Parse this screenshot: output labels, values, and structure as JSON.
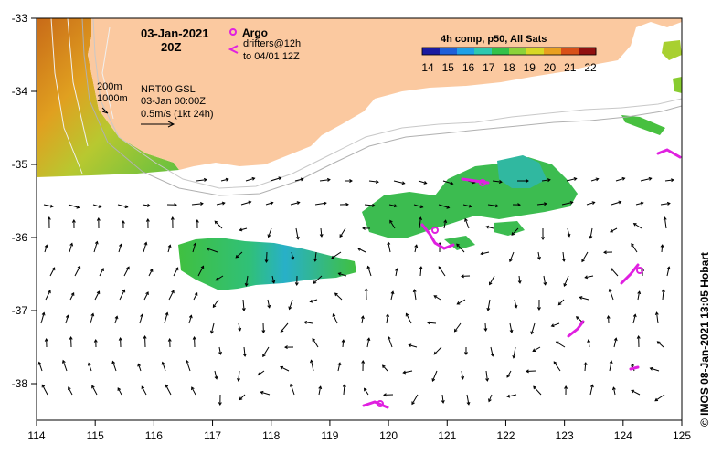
{
  "map": {
    "date_label": "03-Jan-2021",
    "time_label": "20Z",
    "argo_label": "Argo",
    "drifters_label_1": "drifters@12h",
    "drifters_label_2": "to 04/01 12Z",
    "depth_200": "200m",
    "depth_1000": "1000m",
    "product_line1": "NRT00 GSL",
    "product_line2": "03-Jan 00:00Z",
    "scale_label": "0.5m/s (1kt 24h)",
    "credit": "© IMOS 08-Jan-2021 13:05 Hobart"
  },
  "colorbar": {
    "title": "4h comp, p50, All Sats",
    "ticks": [
      "14",
      "15",
      "16",
      "17",
      "18",
      "19",
      "20",
      "21",
      "22"
    ],
    "colors": [
      "#1a1aa0",
      "#1e5fd8",
      "#1fa0e6",
      "#2ec8b0",
      "#33c24a",
      "#8cd23a",
      "#d8d826",
      "#e8a020",
      "#d85018",
      "#901010"
    ]
  },
  "axes": {
    "x_ticks": [
      "114",
      "115",
      "116",
      "117",
      "118",
      "119",
      "120",
      "121",
      "122",
      "123",
      "124",
      "125"
    ],
    "y_ticks": [
      "-33",
      "-34",
      "-35",
      "-36",
      "-37",
      "-38"
    ]
  },
  "colors": {
    "land": "#fbc9a0",
    "argo": "#e020e0",
    "drifter": "#e020e0"
  }
}
